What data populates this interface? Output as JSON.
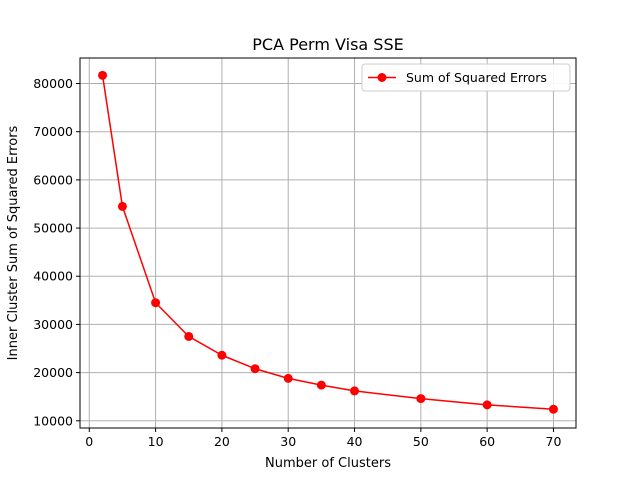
{
  "chart_data": {
    "type": "line",
    "title": "PCA Perm Visa SSE",
    "xlabel": "Number of Clusters",
    "ylabel": "Inner Cluster Sum of Squared Errors",
    "xlim": [
      -1.4,
      73.4
    ],
    "ylim": [
      8500,
      85300
    ],
    "xticks": [
      0,
      10,
      20,
      30,
      40,
      50,
      60,
      70
    ],
    "yticks": [
      10000,
      20000,
      30000,
      40000,
      50000,
      60000,
      70000,
      80000
    ],
    "grid": true,
    "legend_position": "top-right",
    "series": [
      {
        "name": "Sum of Squared Errors",
        "color": "#ff0000",
        "marker": "circle",
        "x": [
          2,
          5,
          10,
          15,
          20,
          25,
          30,
          35,
          40,
          50,
          60,
          70
        ],
        "y": [
          81700,
          54500,
          34500,
          27500,
          23600,
          20800,
          18800,
          17400,
          16200,
          14600,
          13300,
          12400
        ]
      }
    ]
  }
}
